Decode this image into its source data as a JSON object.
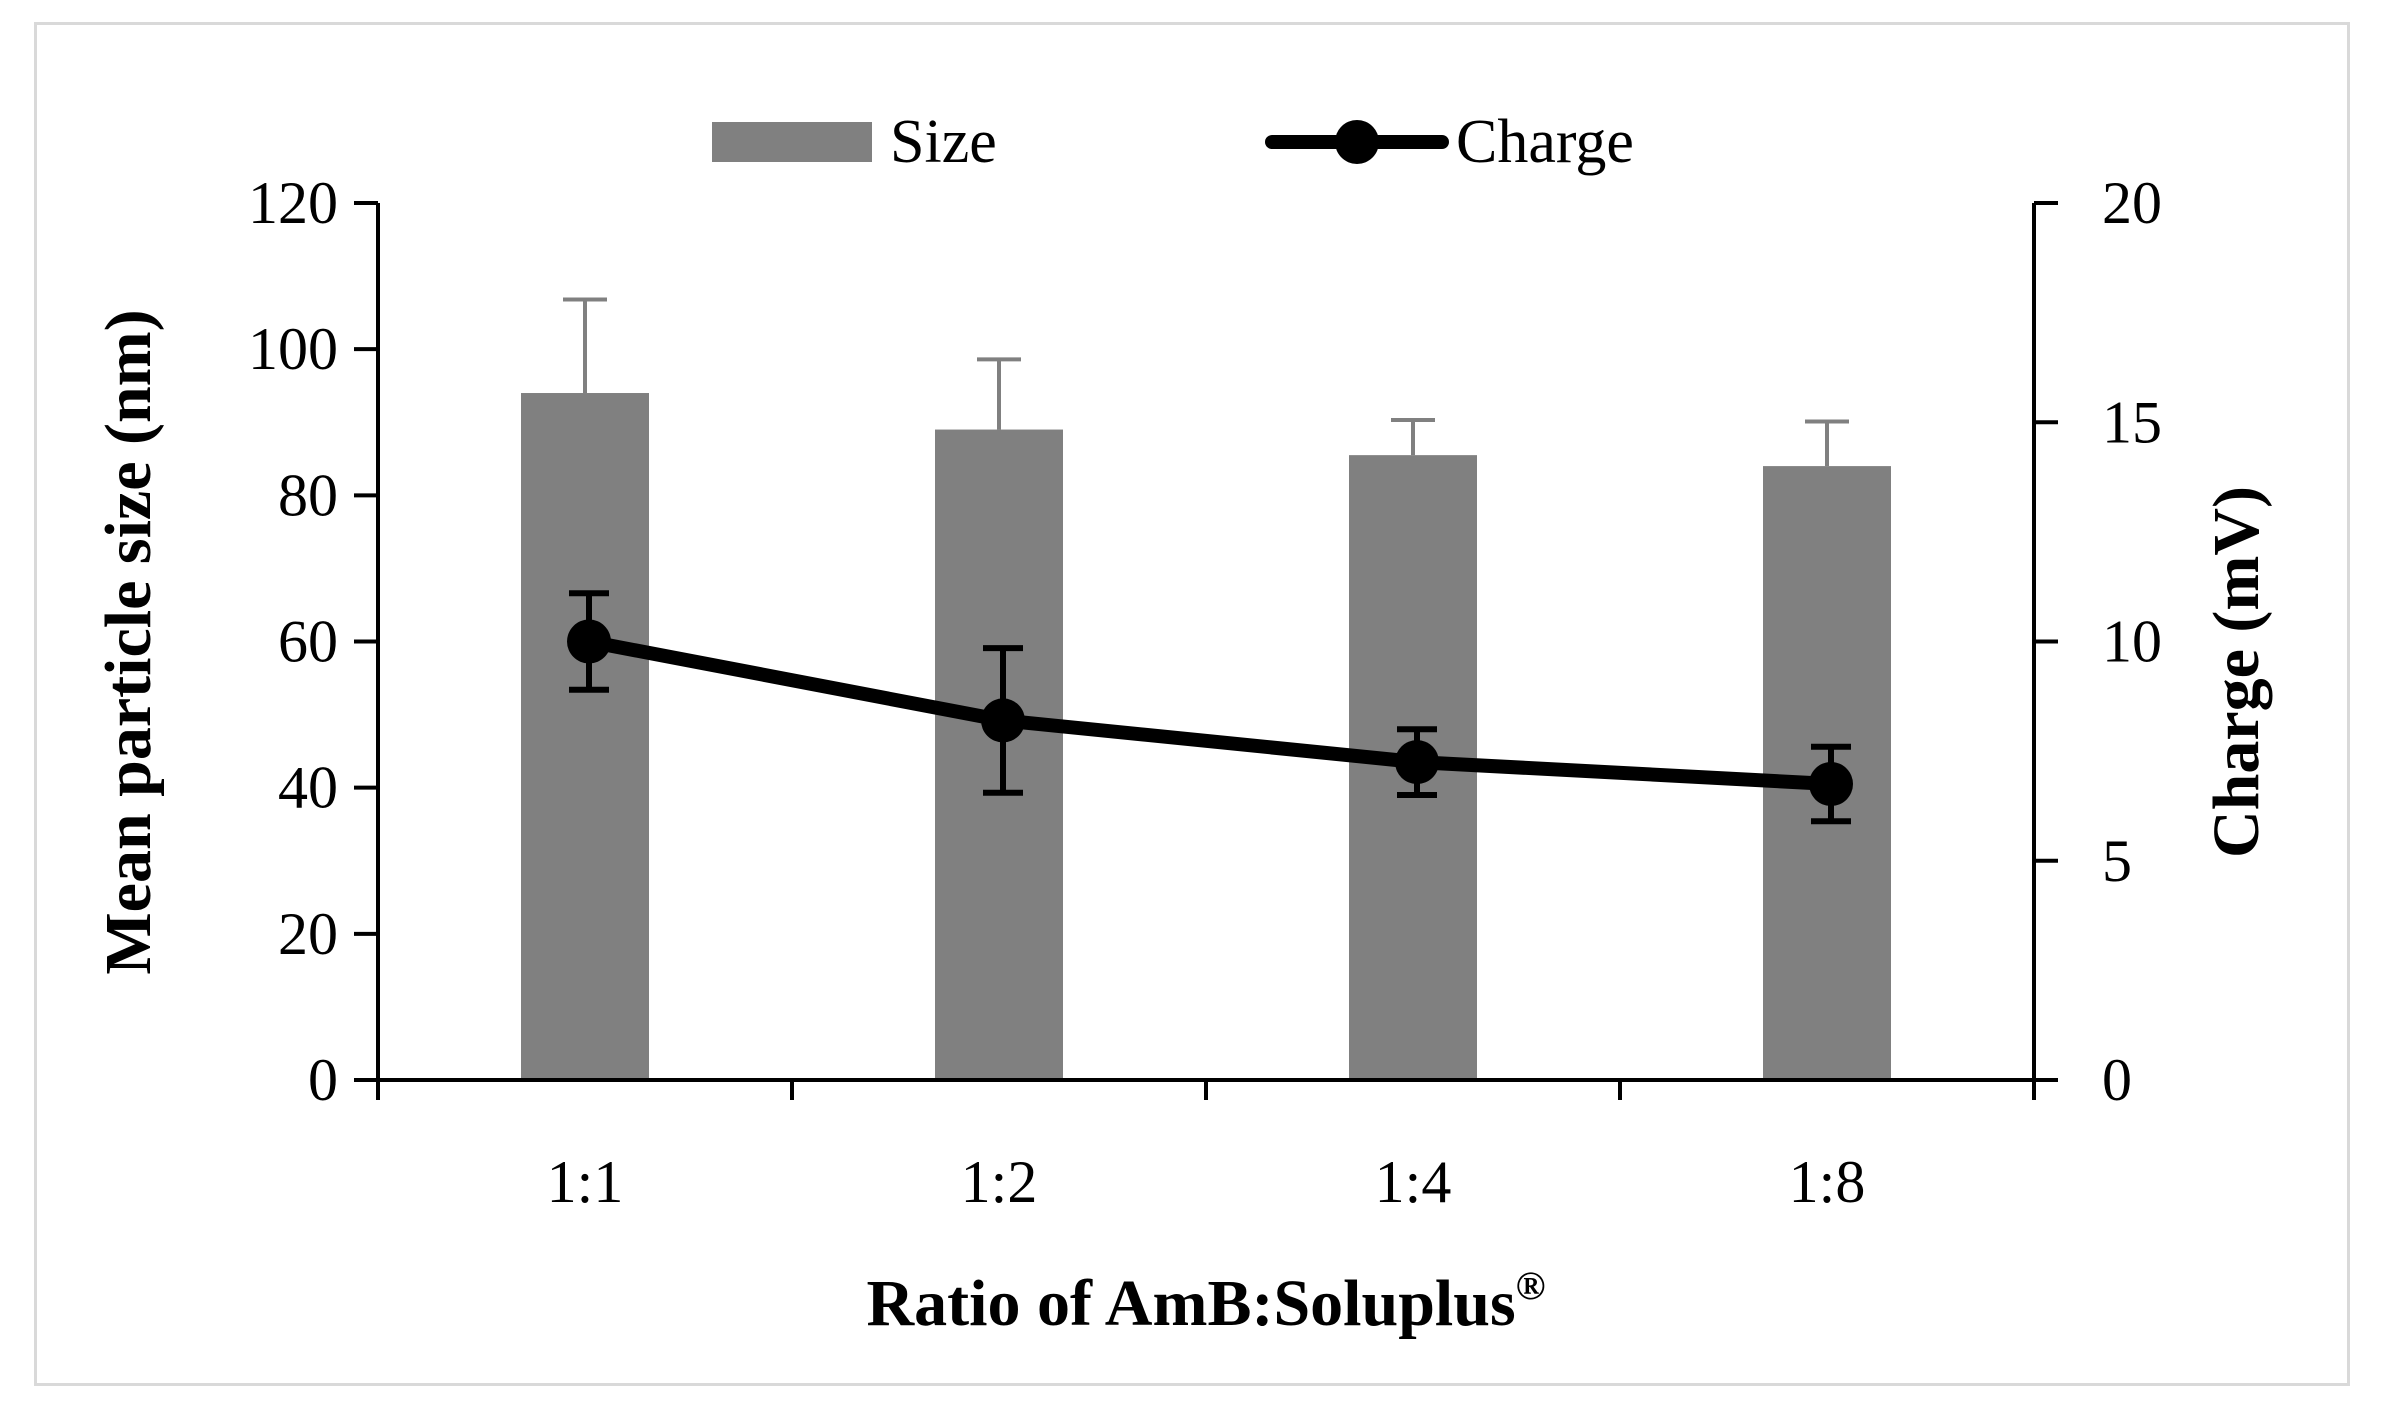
{
  "chart_data": {
    "type": "bar",
    "title": "",
    "categories": [
      "1:1",
      "1:2",
      "1:4",
      "1:8"
    ],
    "xlabel": "Ratio of AmB:Soluplus",
    "xlabel_superscript": "®",
    "series": [
      {
        "name": "Size",
        "kind": "bar",
        "axis": "left",
        "color": "#808080",
        "values": [
          94,
          89,
          85.5,
          84
        ],
        "error_plus": [
          12.8,
          9.6,
          4.8,
          6.1
        ]
      },
      {
        "name": "Charge",
        "kind": "line",
        "axis": "right",
        "color": "#000000",
        "values": [
          10,
          8.2,
          7.25,
          6.75
        ],
        "error": [
          1.1,
          1.65,
          0.75,
          0.85
        ]
      }
    ],
    "ylabel_left": "Mean particle size (nm)",
    "ylim_left": [
      0,
      120
    ],
    "yticks_left": [
      "0",
      "20",
      "40",
      "60",
      "80",
      "100",
      "120"
    ],
    "ylabel_right": "Charge (mV)",
    "ylim_right": [
      0,
      20
    ],
    "yticks_right": [
      "0",
      "5",
      "10",
      "15",
      "20"
    ],
    "legend_position": "top-center",
    "grid": false
  }
}
